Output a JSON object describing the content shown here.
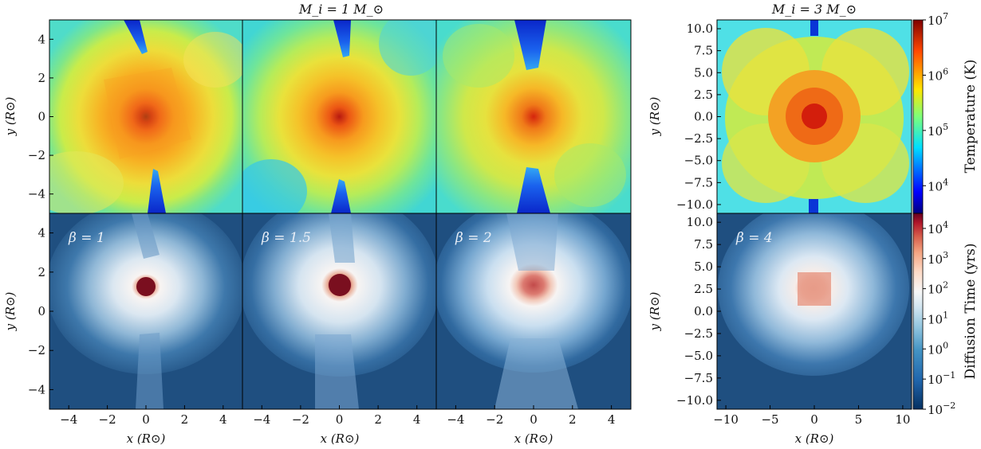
{
  "chart_data": {
    "type": "heatmap",
    "figure_titles": [
      {
        "id": "left",
        "text": "M_i = 1 M_⊙"
      },
      {
        "id": "right",
        "text": "M_i = 3 M_⊙"
      }
    ],
    "columns": [
      {
        "id": "c1",
        "group": "left",
        "beta_label": "β = 1",
        "beta": 1,
        "xlim": [
          -5,
          5
        ],
        "ylim": [
          -5,
          5
        ],
        "xticks": [
          -4,
          -2,
          0,
          2,
          4
        ],
        "yticks": [
          -4,
          -2,
          0,
          2,
          4
        ]
      },
      {
        "id": "c2",
        "group": "left",
        "beta_label": "β = 1.5",
        "beta": 1.5,
        "xlim": [
          -5,
          5
        ],
        "ylim": [
          -5,
          5
        ],
        "xticks": [
          -4,
          -2,
          0,
          2,
          4
        ],
        "yticks": []
      },
      {
        "id": "c3",
        "group": "left",
        "beta_label": "β = 2",
        "beta": 2,
        "xlim": [
          -5,
          5
        ],
        "ylim": [
          -5,
          5
        ],
        "xticks": [
          -4,
          -2,
          0,
          2,
          4
        ],
        "yticks": []
      },
      {
        "id": "c4",
        "group": "right",
        "beta_label": "β = 4",
        "beta": 4,
        "xlim": [
          -11,
          11
        ],
        "ylim": [
          -11,
          11
        ],
        "xticks": [
          -10,
          -5,
          0,
          5,
          10
        ],
        "yticks": [
          -10.0,
          -7.5,
          -5.0,
          -2.5,
          0.0,
          2.5,
          5.0,
          7.5,
          10.0
        ]
      }
    ],
    "left_yticks_labels": [
      "−4",
      "−2",
      "0",
      "2",
      "4"
    ],
    "left_xticks_labels": [
      "−4",
      "−2",
      "0",
      "2",
      "4"
    ],
    "right_yticks_labels": [
      "−10.0",
      "−7.5",
      "−5.0",
      "−2.5",
      "0.0",
      "2.5",
      "5.0",
      "7.5",
      "10.0"
    ],
    "right_xticks_labels": [
      "−10",
      "−5",
      "0",
      "5",
      "10"
    ],
    "xlabel": "x (R⊙)",
    "ylabel": "y (R⊙)",
    "rows": [
      {
        "id": "temperature",
        "quantity": "Temperature",
        "colorbar_label": "Temperature (K)",
        "colormap": "jet",
        "scale": "log",
        "range": [
          10000,
          10000000
        ],
        "colorbar_ticks": [
          {
            "exp": 4,
            "label": "10",
            "sup": "4"
          },
          {
            "exp": 5,
            "label": "10",
            "sup": "5"
          },
          {
            "exp": 6,
            "label": "10",
            "sup": "6"
          },
          {
            "exp": 7,
            "label": "10",
            "sup": "7"
          }
        ],
        "colorbar_range_exp": [
          3.5,
          7
        ]
      },
      {
        "id": "diffusion",
        "quantity": "Diffusion Time",
        "colorbar_label": "Diffusion Time (yrs)",
        "colormap": "RdBu_r",
        "scale": "log",
        "range": [
          0.01,
          10000
        ],
        "colorbar_ticks": [
          {
            "exp": -2,
            "label": "10",
            "sup": "−2"
          },
          {
            "exp": -1,
            "label": "10",
            "sup": "−1"
          },
          {
            "exp": 0,
            "label": "10",
            "sup": "0"
          },
          {
            "exp": 1,
            "label": "10",
            "sup": "1"
          },
          {
            "exp": 2,
            "label": "10",
            "sup": "2"
          },
          {
            "exp": 3,
            "label": "10",
            "sup": "3"
          },
          {
            "exp": 4,
            "label": "10",
            "sup": "4"
          }
        ],
        "colorbar_range_exp": [
          -2,
          4.5
        ]
      }
    ],
    "colors": {
      "jet_center": "#b8140c",
      "jet_mid": "#f5a21a",
      "jet_outer": "#e8e83a",
      "jet_background": "#5fe6c3",
      "jet_cold": "#0a2fd6",
      "diffusion_background": "#1f4f80",
      "diffusion_center": "#7a0f1f",
      "diffusion_white": "#f4f6fa"
    }
  }
}
